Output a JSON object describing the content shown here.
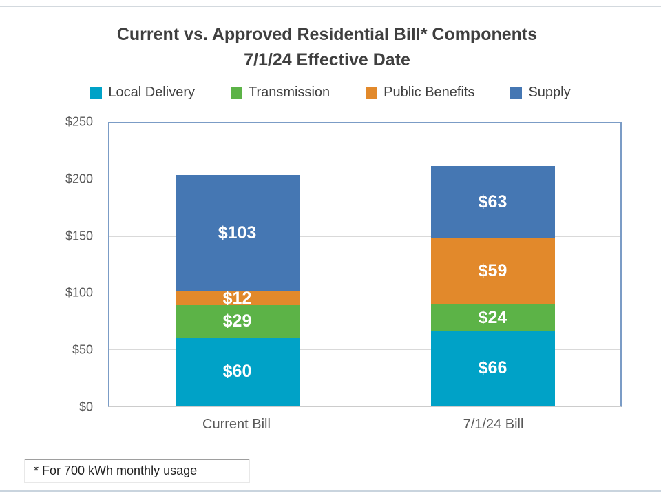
{
  "page": {
    "footnote": "* For 700 kWh monthly usage"
  },
  "chart_data": {
    "type": "bar",
    "stacked": true,
    "title": "Current vs. Approved Residential Bill* Components",
    "subtitle": "7/1/24 Effective Date",
    "categories": [
      "Current Bill",
      "7/1/24 Bill"
    ],
    "series": [
      {
        "name": "Local Delivery",
        "color": "#00A2C7",
        "values": [
          60,
          66
        ]
      },
      {
        "name": "Transmission",
        "color": "#5CB347",
        "values": [
          29,
          24
        ]
      },
      {
        "name": "Public Benefits",
        "color": "#E2892B",
        "values": [
          12,
          59
        ]
      },
      {
        "name": "Supply",
        "color": "#4577B3",
        "values": [
          103,
          63
        ]
      }
    ],
    "totals": [
      204,
      212
    ],
    "value_prefix": "$",
    "ylabel": "",
    "xlabel": "",
    "ylim": [
      0,
      250
    ],
    "ytick_step": 50,
    "ytick_labels": [
      "$0",
      "$50",
      "$100",
      "$150",
      "$200",
      "$250"
    ],
    "grid": true,
    "legend_position": "top",
    "data_labels": "inside-center-white-bold"
  }
}
